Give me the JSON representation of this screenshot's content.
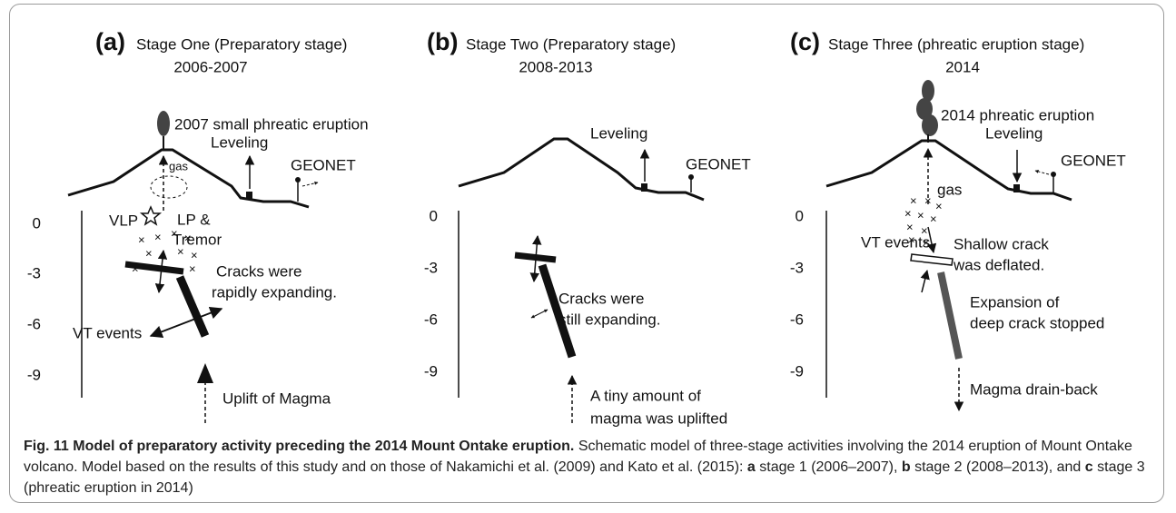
{
  "panels": [
    {
      "letter": "(a)",
      "title": "Stage One  (Preparatory stage)",
      "years": "2006-2007",
      "depth_ticks": [
        "0",
        "-3",
        "-6",
        "-9"
      ],
      "annotations": [
        "2007 small phreatic eruption",
        "gas",
        "Leveling",
        "GEONET",
        "LP &",
        "Tremor",
        "VLP",
        "Cracks were",
        "rapidly expanding.",
        "VT events",
        "Uplift of Magma"
      ]
    },
    {
      "letter": "(b)",
      "title": "Stage Two  (Preparatory stage)",
      "years": "2008-2013",
      "depth_ticks": [
        "0",
        "-3",
        "-6",
        "-9"
      ],
      "annotations": [
        "Leveling",
        "GEONET",
        "Cracks were",
        "still expanding.",
        "A tiny amount of",
        "magma was uplifted"
      ]
    },
    {
      "letter": "(c)",
      "title": "Stage Three (phreatic eruption stage)",
      "years": "2014",
      "depth_ticks": [
        "0",
        "-3",
        "-6",
        "-9"
      ],
      "annotations": [
        "2014 phreatic eruption",
        "gas",
        "Leveling",
        "GEONET",
        "VT events",
        "Shallow crack",
        "was deflated.",
        "Expansion of",
        "deep crack stopped",
        "Magma drain-back"
      ]
    }
  ],
  "caption": {
    "label": "Fig. 11",
    "title": "Model of preparatory activity preceding the 2014 Mount Ontake eruption.",
    "body": [
      "Schematic model of three-stage activities involving the 2014 eruption of Mount Ontake volcano. Model based on the results of this study and on those of Nakamichi et al. (2009) and Kato et al. (2015): ",
      "a",
      " stage 1 (2006–2007), ",
      "b",
      " stage 2 (2008–2013), and ",
      "c",
      " stage 3 (phreatic eruption in 2014)"
    ]
  }
}
